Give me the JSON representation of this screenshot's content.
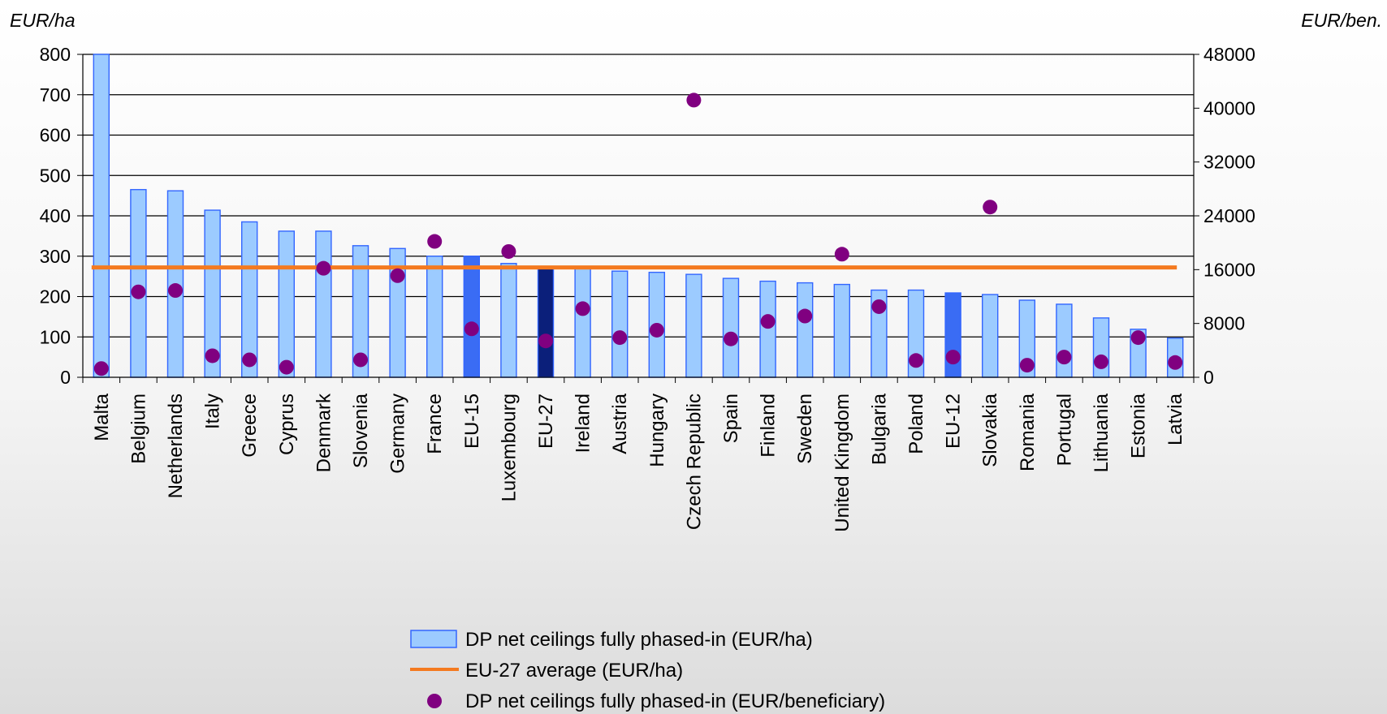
{
  "chart_data": {
    "type": "bar",
    "title": "",
    "y_left_label": "EUR/ha",
    "y_right_label": "EUR/ben.",
    "ylim_left": [
      0,
      800
    ],
    "ylim_right": [
      0,
      48000
    ],
    "yticks_left": [
      "0",
      "100",
      "200",
      "300",
      "400",
      "500",
      "600",
      "700",
      "800"
    ],
    "yticks_right": [
      "0",
      "8000",
      "16000",
      "24000",
      "32000",
      "40000",
      "48000"
    ],
    "grid": true,
    "legend_position": "bottom",
    "categories": [
      "Malta",
      "Belgium",
      "Netherlands",
      "Italy",
      "Greece",
      "Cyprus",
      "Denmark",
      "Slovenia",
      "Germany",
      "France",
      "EU-15",
      "Luxembourg",
      "EU-27",
      "Ireland",
      "Austria",
      "Hungary",
      "Czech Republic",
      "Spain",
      "Finland",
      "Sweden",
      "United Kingdom",
      "Bulgaria",
      "Poland",
      "EU-12",
      "Slovakia",
      "Romania",
      "Portugal",
      "Lithuania",
      "Estonia",
      "Latvia"
    ],
    "series": [
      {
        "name": "DP net ceilings fully phased-in (EUR/ha)",
        "kind": "bar",
        "axis": "left",
        "values": [
          800,
          465,
          462,
          414,
          385,
          362,
          362,
          326,
          319,
          300,
          300,
          282,
          272,
          270,
          263,
          260,
          255,
          245,
          238,
          234,
          230,
          216,
          216,
          209,
          205,
          191,
          181,
          147,
          119,
          97
        ]
      },
      {
        "name": "EU-27 average (EUR/ha)",
        "kind": "line",
        "axis": "left",
        "values": [
          272,
          272,
          272,
          272,
          272,
          272,
          272,
          272,
          272,
          272,
          272,
          272,
          272,
          272,
          272,
          272,
          272,
          272,
          272,
          272,
          272,
          272,
          272,
          272,
          272,
          272,
          272,
          272,
          272,
          272
        ]
      },
      {
        "name": "DP net ceilings fully phased-in (EUR/beneficiary)",
        "kind": "scatter",
        "axis": "right",
        "values": [
          1300,
          12700,
          12900,
          3200,
          2600,
          1500,
          16200,
          2600,
          15100,
          20200,
          7200,
          18700,
          5400,
          10200,
          5900,
          7000,
          41200,
          5700,
          8300,
          9100,
          18300,
          10500,
          2500,
          3000,
          25300,
          1800,
          3000,
          2300,
          5900,
          2200
        ]
      }
    ],
    "colors": {
      "bar": "#9ccbff",
      "bar_edge": "#3366ff",
      "bar_eu15": "#3a6cf4",
      "bar_eu12": "#3a6cf4",
      "bar_eu27": "#0b1f7a",
      "avg_line": "#f47a20",
      "dots": "#800080",
      "grid": "#000000",
      "title": "#1a9a8a"
    }
  }
}
